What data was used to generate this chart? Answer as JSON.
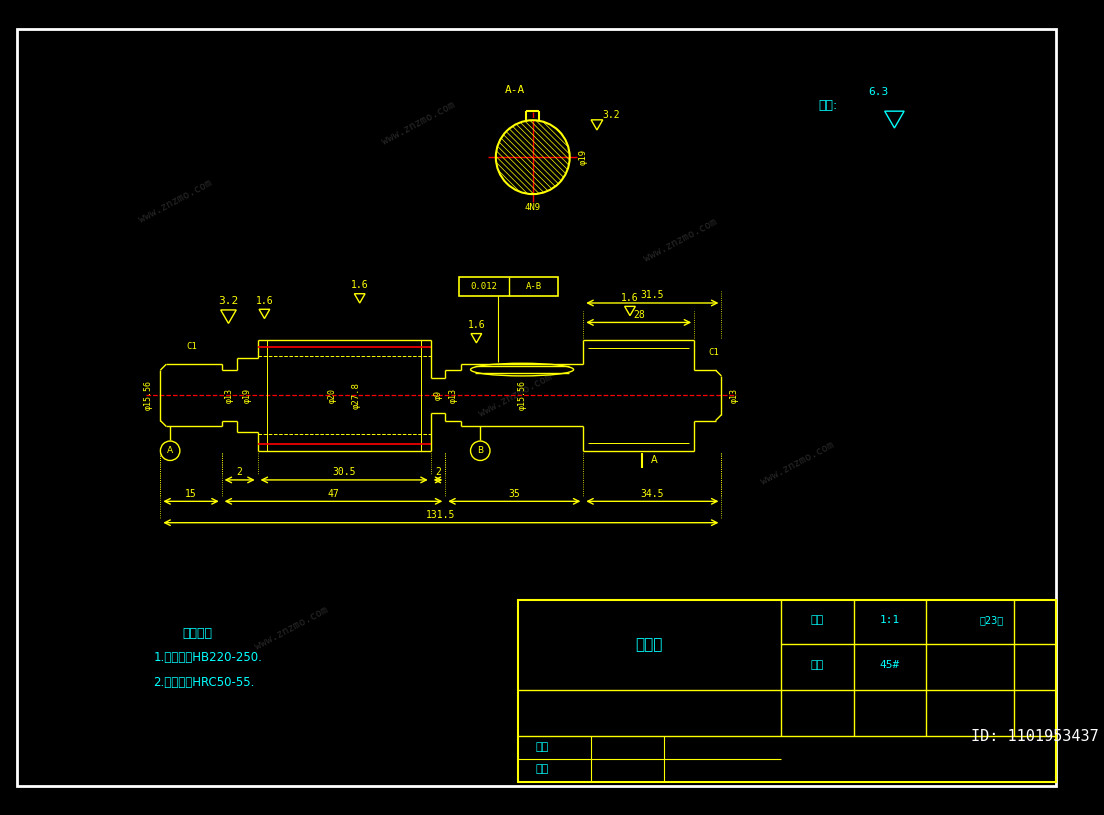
{
  "bg_color": "#000000",
  "border_color": "#ffffff",
  "yellow": "#ffff00",
  "cyan": "#00ffff",
  "red": "#ff0000",
  "title": "齿轮轴",
  "subtitle_text": "技术要求",
  "tech_req1": "1.调制处理HB220-250.",
  "tech_req2": "2.齿面淡火HRC50-55.",
  "ratio_label": "比例",
  "material_label": "材料",
  "scale": "1:1",
  "material": "45#",
  "zhang_label": "全23张",
  "design_label": "设计",
  "check_label": "核核",
  "qiyu_label": "其余:",
  "id_text": "ID: 1101953437",
  "fig_width": 11.04,
  "fig_height": 8.15
}
